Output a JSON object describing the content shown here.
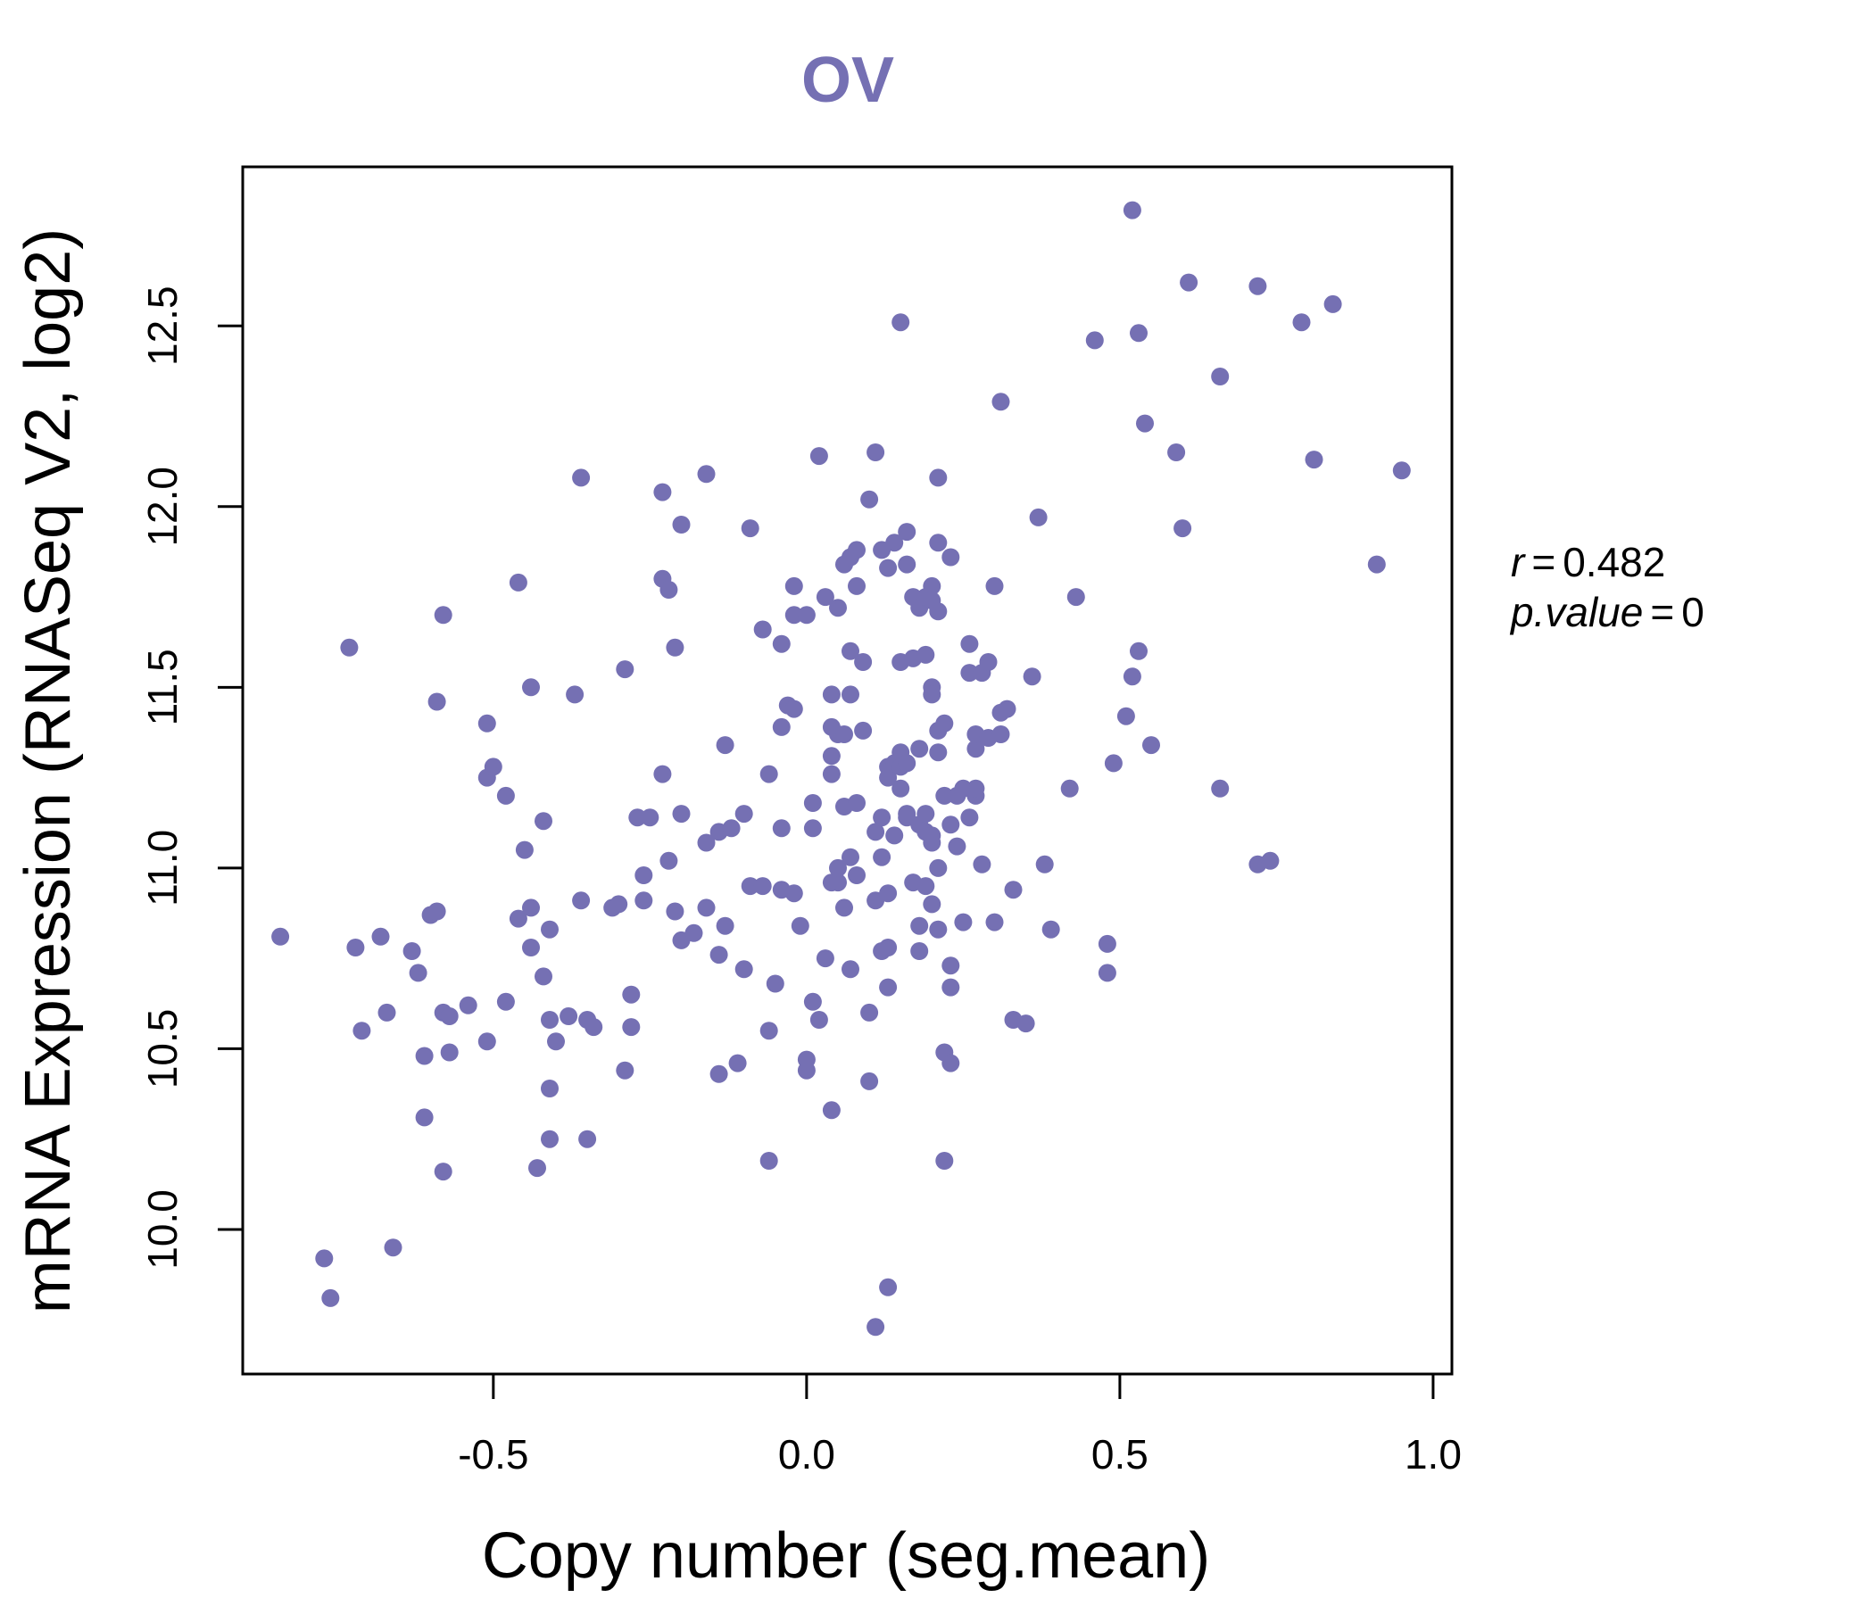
{
  "chart_data": {
    "type": "scatter",
    "title": "OV",
    "xlabel": "Copy number (seg.mean)",
    "ylabel": "mRNA Expression (RNASeq V2, log2)",
    "xlim": [
      -0.9,
      1.03
    ],
    "ylim": [
      9.6,
      12.94
    ],
    "x_ticks": [
      -0.5,
      0.0,
      0.5,
      1.0
    ],
    "x_tick_labels": [
      "-0.5",
      "0.0",
      "0.5",
      "1.0"
    ],
    "y_ticks": [
      10.0,
      10.5,
      11.0,
      11.5,
      12.0,
      12.5
    ],
    "y_tick_labels": [
      "10.0",
      "10.5",
      "11.0",
      "11.5",
      "12.0",
      "12.5"
    ],
    "grid": false,
    "legend": "none",
    "point_color": "#7570b3",
    "annotation": {
      "r_label": "r",
      "r_value": "0.482",
      "p_label": "p.value",
      "p_value": "0"
    },
    "points": [
      [
        -0.84,
        10.81
      ],
      [
        -0.77,
        9.92
      ],
      [
        -0.76,
        9.81
      ],
      [
        -0.73,
        11.61
      ],
      [
        -0.72,
        10.78
      ],
      [
        -0.71,
        10.55
      ],
      [
        -0.68,
        10.81
      ],
      [
        -0.67,
        10.6
      ],
      [
        -0.66,
        9.95
      ],
      [
        -0.63,
        10.77
      ],
      [
        -0.62,
        10.71
      ],
      [
        -0.61,
        10.31
      ],
      [
        -0.61,
        10.48
      ],
      [
        -0.6,
        10.87
      ],
      [
        -0.59,
        11.46
      ],
      [
        -0.59,
        10.88
      ],
      [
        -0.58,
        10.16
      ],
      [
        -0.58,
        11.7
      ],
      [
        -0.58,
        10.6
      ],
      [
        -0.57,
        10.59
      ],
      [
        -0.57,
        10.49
      ],
      [
        -0.54,
        10.62
      ],
      [
        -0.51,
        10.52
      ],
      [
        -0.51,
        11.4
      ],
      [
        -0.51,
        11.25
      ],
      [
        -0.5,
        11.28
      ],
      [
        -0.48,
        11.2
      ],
      [
        -0.48,
        10.63
      ],
      [
        -0.46,
        10.86
      ],
      [
        -0.46,
        11.79
      ],
      [
        -0.45,
        11.05
      ],
      [
        -0.44,
        11.5
      ],
      [
        -0.44,
        10.78
      ],
      [
        -0.44,
        10.89
      ],
      [
        -0.43,
        10.17
      ],
      [
        -0.42,
        10.7
      ],
      [
        -0.42,
        11.13
      ],
      [
        -0.41,
        10.25
      ],
      [
        -0.41,
        10.39
      ],
      [
        -0.41,
        10.83
      ],
      [
        -0.41,
        10.58
      ],
      [
        -0.4,
        10.52
      ],
      [
        -0.38,
        10.59
      ],
      [
        -0.37,
        11.48
      ],
      [
        -0.36,
        10.91
      ],
      [
        -0.36,
        12.08
      ],
      [
        -0.35,
        10.25
      ],
      [
        -0.35,
        10.58
      ],
      [
        -0.34,
        10.56
      ],
      [
        -0.31,
        10.89
      ],
      [
        -0.3,
        10.9
      ],
      [
        -0.29,
        11.55
      ],
      [
        -0.29,
        10.44
      ],
      [
        -0.28,
        10.65
      ],
      [
        -0.28,
        10.56
      ],
      [
        -0.27,
        11.14
      ],
      [
        -0.26,
        10.91
      ],
      [
        -0.26,
        10.98
      ],
      [
        -0.25,
        11.14
      ],
      [
        -0.23,
        11.8
      ],
      [
        -0.23,
        12.04
      ],
      [
        -0.23,
        11.26
      ],
      [
        -0.22,
        11.02
      ],
      [
        -0.22,
        11.77
      ],
      [
        -0.21,
        11.61
      ],
      [
        -0.21,
        10.88
      ],
      [
        -0.2,
        11.95
      ],
      [
        -0.2,
        10.8
      ],
      [
        -0.2,
        11.15
      ],
      [
        -0.18,
        10.82
      ],
      [
        -0.16,
        12.09
      ],
      [
        -0.16,
        11.07
      ],
      [
        -0.16,
        10.89
      ],
      [
        -0.14,
        11.1
      ],
      [
        -0.14,
        10.43
      ],
      [
        -0.14,
        10.76
      ],
      [
        -0.13,
        11.34
      ],
      [
        -0.13,
        10.84
      ],
      [
        -0.12,
        11.11
      ],
      [
        -0.11,
        10.46
      ],
      [
        -0.1,
        11.15
      ],
      [
        -0.1,
        10.72
      ],
      [
        -0.09,
        11.94
      ],
      [
        -0.09,
        10.95
      ],
      [
        -0.07,
        11.66
      ],
      [
        -0.07,
        10.95
      ],
      [
        -0.06,
        11.26
      ],
      [
        -0.06,
        10.55
      ],
      [
        -0.06,
        10.19
      ],
      [
        -0.05,
        10.68
      ],
      [
        -0.04,
        11.62
      ],
      [
        -0.04,
        11.11
      ],
      [
        -0.04,
        10.94
      ],
      [
        -0.04,
        11.39
      ],
      [
        -0.03,
        11.45
      ],
      [
        -0.02,
        11.7
      ],
      [
        -0.02,
        10.93
      ],
      [
        -0.02,
        11.78
      ],
      [
        -0.02,
        11.44
      ],
      [
        -0.01,
        10.84
      ],
      [
        0.0,
        11.7
      ],
      [
        0.0,
        10.44
      ],
      [
        0.0,
        10.47
      ],
      [
        0.01,
        11.11
      ],
      [
        0.01,
        10.63
      ],
      [
        0.01,
        11.18
      ],
      [
        0.02,
        12.14
      ],
      [
        0.02,
        10.58
      ],
      [
        0.03,
        10.75
      ],
      [
        0.03,
        11.75
      ],
      [
        0.04,
        10.33
      ],
      [
        0.04,
        10.96
      ],
      [
        0.04,
        11.48
      ],
      [
        0.04,
        11.39
      ],
      [
        0.04,
        11.31
      ],
      [
        0.04,
        11.26
      ],
      [
        0.05,
        11.37
      ],
      [
        0.05,
        10.96
      ],
      [
        0.05,
        11.0
      ],
      [
        0.05,
        11.72
      ],
      [
        0.06,
        10.89
      ],
      [
        0.06,
        11.17
      ],
      [
        0.06,
        11.84
      ],
      [
        0.06,
        11.37
      ],
      [
        0.07,
        10.72
      ],
      [
        0.07,
        11.86
      ],
      [
        0.07,
        11.03
      ],
      [
        0.07,
        11.6
      ],
      [
        0.07,
        11.48
      ],
      [
        0.08,
        10.98
      ],
      [
        0.08,
        11.78
      ],
      [
        0.08,
        11.88
      ],
      [
        0.08,
        11.18
      ],
      [
        0.09,
        11.38
      ],
      [
        0.09,
        11.57
      ],
      [
        0.1,
        12.02
      ],
      [
        0.1,
        10.6
      ],
      [
        0.1,
        10.41
      ],
      [
        0.11,
        11.1
      ],
      [
        0.11,
        10.91
      ],
      [
        0.11,
        12.15
      ],
      [
        0.11,
        9.73
      ],
      [
        0.12,
        11.14
      ],
      [
        0.12,
        10.77
      ],
      [
        0.12,
        11.03
      ],
      [
        0.12,
        11.88
      ],
      [
        0.13,
        9.84
      ],
      [
        0.13,
        11.28
      ],
      [
        0.13,
        10.93
      ],
      [
        0.13,
        11.25
      ],
      [
        0.13,
        11.83
      ],
      [
        0.13,
        10.78
      ],
      [
        0.13,
        10.67
      ],
      [
        0.14,
        11.9
      ],
      [
        0.14,
        11.09
      ],
      [
        0.14,
        11.29
      ],
      [
        0.15,
        12.51
      ],
      [
        0.15,
        11.32
      ],
      [
        0.15,
        11.22
      ],
      [
        0.15,
        11.28
      ],
      [
        0.15,
        11.57
      ],
      [
        0.16,
        11.15
      ],
      [
        0.16,
        11.14
      ],
      [
        0.16,
        11.84
      ],
      [
        0.16,
        11.93
      ],
      [
        0.16,
        11.29
      ],
      [
        0.17,
        10.96
      ],
      [
        0.17,
        11.58
      ],
      [
        0.17,
        11.75
      ],
      [
        0.18,
        10.77
      ],
      [
        0.18,
        10.84
      ],
      [
        0.18,
        11.72
      ],
      [
        0.18,
        11.33
      ],
      [
        0.18,
        11.12
      ],
      [
        0.19,
        11.15
      ],
      [
        0.19,
        11.1
      ],
      [
        0.19,
        11.75
      ],
      [
        0.19,
        11.59
      ],
      [
        0.19,
        10.95
      ],
      [
        0.2,
        11.5
      ],
      [
        0.2,
        11.78
      ],
      [
        0.2,
        10.9
      ],
      [
        0.2,
        11.48
      ],
      [
        0.2,
        11.74
      ],
      [
        0.2,
        11.07
      ],
      [
        0.2,
        11.09
      ],
      [
        0.21,
        11.38
      ],
      [
        0.21,
        10.83
      ],
      [
        0.21,
        11.0
      ],
      [
        0.21,
        12.08
      ],
      [
        0.21,
        11.9
      ],
      [
        0.21,
        11.71
      ],
      [
        0.21,
        11.32
      ],
      [
        0.22,
        11.2
      ],
      [
        0.22,
        10.49
      ],
      [
        0.22,
        10.19
      ],
      [
        0.22,
        11.4
      ],
      [
        0.23,
        11.12
      ],
      [
        0.23,
        10.73
      ],
      [
        0.23,
        11.86
      ],
      [
        0.23,
        10.67
      ],
      [
        0.23,
        10.46
      ],
      [
        0.24,
        11.06
      ],
      [
        0.24,
        11.2
      ],
      [
        0.25,
        10.85
      ],
      [
        0.25,
        11.22
      ],
      [
        0.26,
        11.14
      ],
      [
        0.26,
        11.54
      ],
      [
        0.26,
        11.62
      ],
      [
        0.27,
        11.33
      ],
      [
        0.27,
        11.2
      ],
      [
        0.27,
        11.37
      ],
      [
        0.27,
        11.22
      ],
      [
        0.28,
        11.54
      ],
      [
        0.28,
        11.01
      ],
      [
        0.29,
        11.36
      ],
      [
        0.29,
        11.57
      ],
      [
        0.3,
        10.85
      ],
      [
        0.3,
        11.78
      ],
      [
        0.31,
        12.29
      ],
      [
        0.31,
        11.37
      ],
      [
        0.31,
        11.43
      ],
      [
        0.32,
        11.44
      ],
      [
        0.33,
        10.58
      ],
      [
        0.33,
        10.94
      ],
      [
        0.35,
        10.57
      ],
      [
        0.36,
        11.53
      ],
      [
        0.37,
        11.97
      ],
      [
        0.38,
        11.01
      ],
      [
        0.39,
        10.83
      ],
      [
        0.42,
        11.22
      ],
      [
        0.43,
        11.75
      ],
      [
        0.46,
        12.46
      ],
      [
        0.48,
        10.71
      ],
      [
        0.48,
        10.79
      ],
      [
        0.49,
        11.29
      ],
      [
        0.51,
        11.42
      ],
      [
        0.52,
        12.82
      ],
      [
        0.52,
        11.53
      ],
      [
        0.53,
        12.48
      ],
      [
        0.53,
        11.6
      ],
      [
        0.54,
        12.23
      ],
      [
        0.55,
        11.34
      ],
      [
        0.59,
        12.15
      ],
      [
        0.6,
        11.94
      ],
      [
        0.61,
        12.62
      ],
      [
        0.66,
        12.36
      ],
      [
        0.66,
        11.22
      ],
      [
        0.72,
        12.61
      ],
      [
        0.72,
        11.01
      ],
      [
        0.74,
        11.02
      ],
      [
        0.79,
        12.51
      ],
      [
        0.81,
        12.13
      ],
      [
        0.84,
        12.56
      ],
      [
        0.91,
        11.84
      ],
      [
        0.95,
        12.1
      ]
    ]
  }
}
